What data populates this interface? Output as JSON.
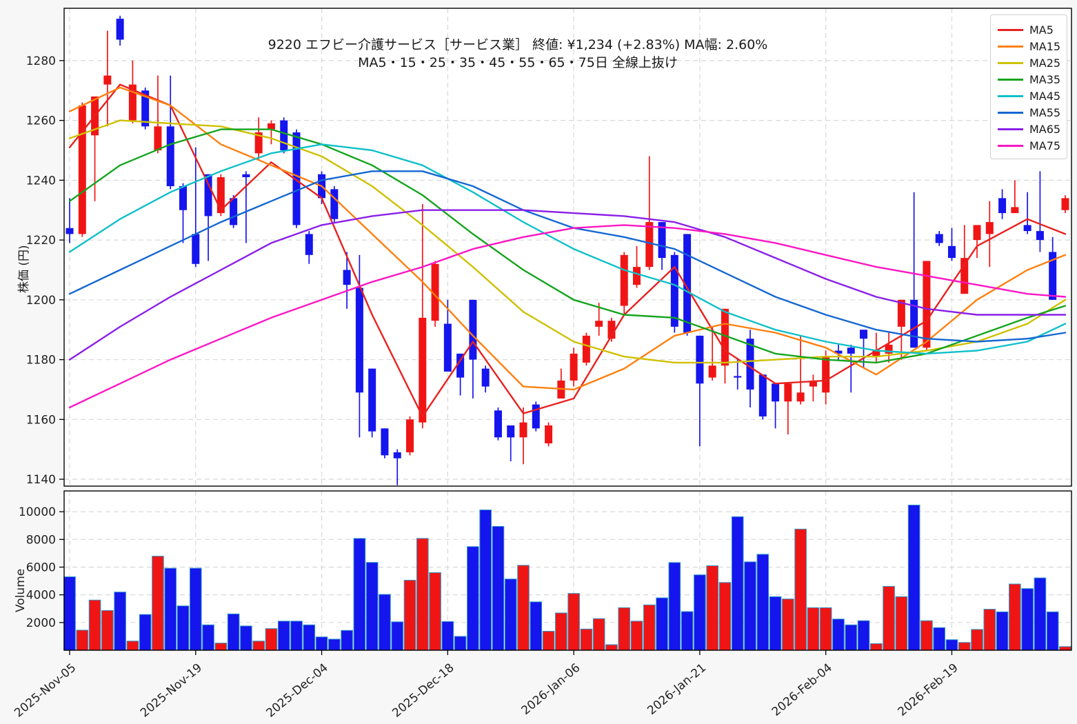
{
  "title": {
    "line1": "9220  エフビー介護サービス［サービス業］  終値: ¥1,234 (+2.83%)  MA幅: 2.60%",
    "line2": "MA5・15・25・35・45・55・65・75日 全線上抜け"
  },
  "price_axis": {
    "label": "株価 (円)",
    "ticks": [
      1140,
      1160,
      1180,
      1200,
      1220,
      1240,
      1260,
      1280
    ],
    "range": [
      1137.7,
      1297.5
    ]
  },
  "volume_axis": {
    "label": "Volume",
    "ticks": [
      2000,
      4000,
      6000,
      8000,
      10000
    ],
    "range": [
      0,
      11500
    ]
  },
  "x_axis": {
    "tick_indices": [
      0,
      10,
      20,
      30,
      40,
      50,
      60,
      70
    ],
    "tick_labels": [
      "2025-Nov-05",
      "2025-Nov-19",
      "2025-Dec-04",
      "2025-Dec-18",
      "2026-Jan-06",
      "2026-Jan-21",
      "2026-Feb-04",
      "2026-Feb-19"
    ]
  },
  "legend": {
    "items": [
      {
        "label": "MA5",
        "color": "#e8211e"
      },
      {
        "label": "MA15",
        "color": "#ff7f0e"
      },
      {
        "label": "MA25",
        "color": "#cfc000"
      },
      {
        "label": "MA35",
        "color": "#14a41e"
      },
      {
        "label": "MA45",
        "color": "#0fbfc8"
      },
      {
        "label": "MA55",
        "color": "#1467d2"
      },
      {
        "label": "MA65",
        "color": "#8a1fe8"
      },
      {
        "label": "MA75",
        "color": "#fb16c4"
      }
    ]
  },
  "colors": {
    "up": "#f01515",
    "down": "#1515ee",
    "volume_edge": "#2e96c8",
    "grid": "#d8d8d8",
    "spine": "#000000",
    "figure_bg": "#f7f7f7",
    "panel_bg": "#ffffff"
  },
  "chart_data": {
    "type": "candlestick+volume+ma",
    "title": "9220 エフビー介護サービス 日足チャート",
    "close_price": 1234,
    "change_percent": 2.83,
    "ma_width_percent": 2.6,
    "candles": [
      [
        1224,
        1234,
        1219,
        1222
      ],
      [
        1222,
        1266,
        1221,
        1265
      ],
      [
        1255,
        1268,
        1233,
        1268
      ],
      [
        1272,
        1290,
        1258,
        1275
      ],
      [
        1294,
        1295,
        1285,
        1287
      ],
      [
        1260,
        1280,
        1259,
        1272
      ],
      [
        1270,
        1271,
        1257,
        1258
      ],
      [
        1250,
        1275,
        1249,
        1258
      ],
      [
        1258,
        1275,
        1237,
        1238
      ],
      [
        1238,
        1239,
        1219,
        1230
      ],
      [
        1222,
        1251,
        1211,
        1212
      ],
      [
        1242,
        1242,
        1213,
        1228
      ],
      [
        1229,
        1242,
        1228,
        1241
      ],
      [
        1234,
        1235,
        1224,
        1225
      ],
      [
        1242,
        1243,
        1219,
        1241
      ],
      [
        1249,
        1261,
        1247,
        1256
      ],
      [
        1257,
        1260,
        1252,
        1259
      ],
      [
        1260,
        1261,
        1249,
        1250
      ],
      [
        1256,
        1257,
        1224,
        1225
      ],
      [
        1222,
        1223,
        1212,
        1215
      ],
      [
        1242,
        1243,
        1232,
        1234
      ],
      [
        1237,
        1238,
        1226,
        1227
      ],
      [
        1210,
        1216,
        1197,
        1205
      ],
      [
        1204,
        1215,
        1154,
        1169
      ],
      [
        1177,
        1177,
        1154,
        1156
      ],
      [
        1157,
        1157,
        1147,
        1148
      ],
      [
        1149,
        1150,
        1138,
        1147
      ],
      [
        1149,
        1161,
        1148,
        1160
      ],
      [
        1159,
        1232,
        1157,
        1194
      ],
      [
        1193,
        1213,
        1191,
        1212
      ],
      [
        1192,
        1200,
        1176,
        1176
      ],
      [
        1182,
        1182,
        1168,
        1174
      ],
      [
        1200,
        1200,
        1167,
        1180
      ],
      [
        1177,
        1178,
        1169,
        1171
      ],
      [
        1163,
        1164,
        1153,
        1154
      ],
      [
        1158,
        1158,
        1146,
        1154
      ],
      [
        1154,
        1164,
        1145,
        1159
      ],
      [
        1165,
        1166,
        1156,
        1157
      ],
      [
        1152,
        1159,
        1151,
        1158
      ],
      [
        1167,
        1177,
        1167,
        1173
      ],
      [
        1173,
        1184,
        1171,
        1182
      ],
      [
        1179,
        1189,
        1178,
        1188
      ],
      [
        1191,
        1199,
        1188,
        1193
      ],
      [
        1187,
        1194,
        1186,
        1193
      ],
      [
        1198,
        1216,
        1195,
        1215
      ],
      [
        1205,
        1218,
        1204,
        1211
      ],
      [
        1211,
        1248,
        1210,
        1226
      ],
      [
        1226,
        1226,
        1210,
        1214
      ],
      [
        1215,
        1216,
        1189,
        1191
      ],
      [
        1222,
        1222,
        1188,
        1189
      ],
      [
        1188,
        1188,
        1151,
        1172
      ],
      [
        1174,
        1191,
        1173,
        1178
      ],
      [
        1178,
        1197,
        1172,
        1197
      ],
      [
        1174.5,
        1180,
        1170,
        1174
      ],
      [
        1187,
        1190,
        1164,
        1170
      ],
      [
        1175,
        1175,
        1160,
        1161
      ],
      [
        1172,
        1172,
        1157,
        1166
      ],
      [
        1166,
        1172,
        1155,
        1172
      ],
      [
        1166,
        1188,
        1165,
        1169
      ],
      [
        1171,
        1175,
        1166,
        1173
      ],
      [
        1169,
        1183,
        1165,
        1181
      ],
      [
        1183,
        1185,
        1180,
        1182
      ],
      [
        1184,
        1185,
        1169,
        1182
      ],
      [
        1190,
        1190,
        1177,
        1187
      ],
      [
        1181,
        1189,
        1179,
        1183
      ],
      [
        1182,
        1189,
        1179,
        1185
      ],
      [
        1191,
        1200,
        1180,
        1200
      ],
      [
        1200,
        1236,
        1184,
        1184
      ],
      [
        1184,
        1213,
        1183,
        1213
      ],
      [
        1222,
        1223,
        1218,
        1219
      ],
      [
        1218,
        1224,
        1213,
        1214
      ],
      [
        1202,
        1225,
        1202,
        1214
      ],
      [
        1220,
        1225,
        1214,
        1225
      ],
      [
        1222,
        1233,
        1211,
        1226
      ],
      [
        1234,
        1237,
        1227,
        1229
      ],
      [
        1229,
        1240,
        1229,
        1231
      ],
      [
        1225,
        1236,
        1222,
        1223
      ],
      [
        1223,
        1243,
        1216,
        1220
      ],
      [
        1216,
        1221,
        1200,
        1200
      ],
      [
        1230,
        1235,
        1229,
        1234
      ]
    ],
    "volumes": [
      5300,
      1450,
      3620,
      2870,
      4200,
      660,
      2580,
      6790,
      5920,
      3200,
      5920,
      1830,
      515,
      2620,
      1750,
      660,
      1560,
      2100,
      2100,
      1830,
      960,
      800,
      1430,
      8070,
      6340,
      4030,
      2050,
      5055,
      8070,
      5600,
      2070,
      1000,
      7480,
      10130,
      8940,
      5140,
      6130,
      3490,
      1370,
      2690,
      4100,
      1530,
      2280,
      400,
      3070,
      2100,
      3270,
      3780,
      6330,
      2790,
      5440,
      6100,
      4890,
      9640,
      6380,
      6925,
      3865,
      3700,
      8745,
      3070,
      3070,
      2250,
      1830,
      2130,
      475,
      4610,
      3865,
      10480,
      2130,
      1630,
      760,
      560,
      1500,
      2960,
      2770,
      4780,
      4450,
      5220,
      2770,
      260
    ],
    "ma_sample_indices": [
      0,
      4,
      8,
      12,
      16,
      20,
      24,
      28,
      32,
      36,
      40,
      44,
      48,
      52,
      56,
      60,
      64,
      68,
      72,
      76,
      79
    ],
    "ma_series": [
      {
        "name": "MA5",
        "color": "#e8211e",
        "values": [
          1251,
          1272,
          1265,
          1230,
          1246,
          1234,
          1195,
          1161,
          1186,
          1162,
          1167,
          1195,
          1211,
          1183,
          1172,
          1173,
          1183,
          1193,
          1218,
          1227,
          1222
        ]
      },
      {
        "name": "MA15",
        "color": "#ff7f0e",
        "values": [
          1263,
          1271,
          1265,
          1252,
          1245,
          1238,
          1222,
          1206,
          1188,
          1171,
          1170,
          1177,
          1188,
          1192,
          1189,
          1184,
          1175,
          1186,
          1200,
          1210,
          1215
        ]
      },
      {
        "name": "MA25",
        "color": "#cfc000",
        "values": [
          1254,
          1260,
          1259,
          1258,
          1254,
          1248,
          1238,
          1225,
          1211,
          1196,
          1186,
          1181,
          1179,
          1179,
          1180,
          1181,
          1181,
          1183,
          1186,
          1192,
          1200
        ]
      },
      {
        "name": "MA35",
        "color": "#14a41e",
        "values": [
          1233,
          1245,
          1252,
          1257,
          1257,
          1252,
          1245,
          1235,
          1222,
          1210,
          1200,
          1195,
          1194,
          1188,
          1182,
          1180,
          1179,
          1182,
          1188,
          1194,
          1198
        ]
      },
      {
        "name": "MA45",
        "color": "#0fbfc8",
        "values": [
          1216,
          1227,
          1236,
          1243,
          1249,
          1252,
          1250,
          1245,
          1236,
          1226,
          1217,
          1210,
          1205,
          1196,
          1190,
          1186,
          1183,
          1182,
          1183,
          1186,
          1192
        ]
      },
      {
        "name": "MA55",
        "color": "#1467d2",
        "values": [
          1202,
          1210,
          1218,
          1226,
          1233,
          1240,
          1243,
          1243,
          1238,
          1230,
          1224,
          1221,
          1217,
          1209,
          1201,
          1195,
          1190,
          1187,
          1186,
          1187,
          1189
        ]
      },
      {
        "name": "MA65",
        "color": "#8a1fe8",
        "values": [
          1180,
          1191,
          1201,
          1210,
          1219,
          1225,
          1228,
          1230,
          1230,
          1230,
          1229,
          1228,
          1226,
          1221,
          1214,
          1207,
          1201,
          1197,
          1195,
          1195,
          1195
        ]
      },
      {
        "name": "MA75",
        "color": "#fb16c4",
        "values": [
          1164,
          1172,
          1180,
          1187,
          1194,
          1200,
          1206,
          1211,
          1217,
          1221,
          1224,
          1225,
          1224,
          1222,
          1219,
          1215,
          1211,
          1208,
          1205,
          1202,
          1201
        ]
      }
    ]
  }
}
